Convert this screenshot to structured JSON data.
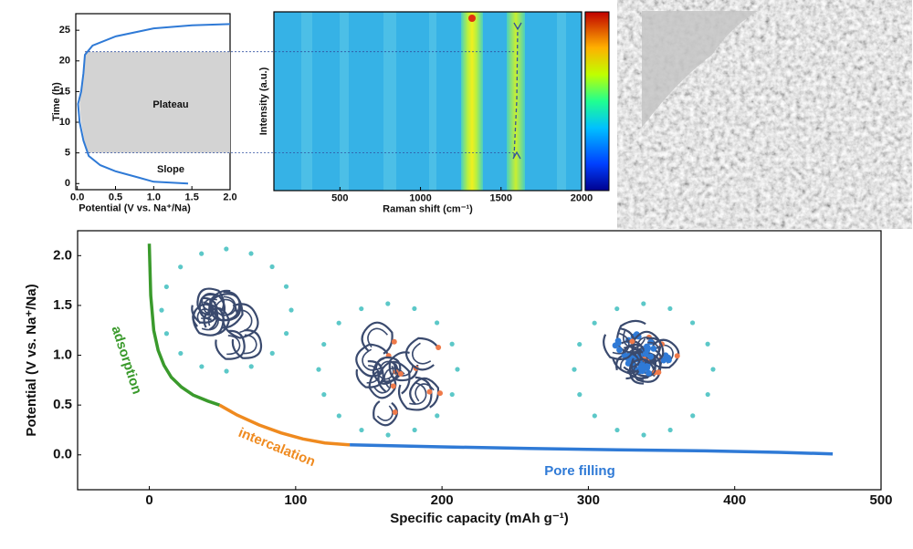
{
  "chart_data": [
    {
      "type": "line",
      "x_label": "Potential (V vs. Na⁺/Na)",
      "y_label": "Time (h)",
      "xlim": [
        -0.02,
        2.0
      ],
      "ylim": [
        -1,
        27.7
      ],
      "xticks": [
        {
          "value": 0,
          "label": "0.0"
        },
        {
          "value": 0.5,
          "label": "0.5"
        },
        {
          "value": 1.0,
          "label": "1.0"
        },
        {
          "value": 1.5,
          "label": "1.5"
        },
        {
          "value": 2.0,
          "label": "2.0"
        }
      ],
      "yticks": [
        0,
        5,
        10,
        15,
        20,
        25
      ],
      "annotations": [
        "Plateau",
        "Slope"
      ],
      "series": [
        {
          "color": "#2f7ad6",
          "x": [
            1.45,
            1.0,
            0.8,
            0.5,
            0.3,
            0.15,
            0.08,
            0.03,
            0.01,
            0.05,
            0.08,
            0.1,
            0.2,
            0.5,
            1.0,
            1.5,
            2.0
          ],
          "values": [
            0,
            0.3,
            1,
            2,
            3,
            4.5,
            7,
            10,
            13,
            15,
            18,
            21,
            22.5,
            24,
            25.3,
            25.8,
            26
          ]
        }
      ]
    },
    {
      "type": "heatmap",
      "x_label": "Raman shift (cm⁻¹)",
      "y_label": "Intensity (a.u.)",
      "xlim": [
        90,
        2000
      ],
      "xticks": [
        500,
        1000,
        1500,
        2000
      ]
    },
    {
      "type": "line",
      "x_label": "Specific capacity (mAh g⁻¹)",
      "y_label": "Potential (V vs. Na⁺/Na)",
      "xlim": [
        -49,
        500
      ],
      "ylim": [
        -0.35,
        2.25
      ],
      "xticks": [
        0,
        100,
        200,
        300,
        400,
        500
      ],
      "yticks": [
        {
          "value": 0,
          "label": "0.0"
        },
        {
          "value": 0.5,
          "label": "0.5"
        },
        {
          "value": 1.0,
          "label": "1.0"
        },
        {
          "value": 1.5,
          "label": "1.5"
        },
        {
          "value": 2.0,
          "label": "2.0"
        }
      ],
      "series": [
        {
          "name": "adsorption",
          "color": "#3a9a2c",
          "x": [
            0,
            1,
            3,
            6,
            10,
            15,
            22,
            30,
            40,
            48
          ],
          "values": [
            2.12,
            1.6,
            1.25,
            1.05,
            0.9,
            0.78,
            0.68,
            0.6,
            0.54,
            0.5
          ]
        },
        {
          "name": "intercalation",
          "color": "#ef8a1f",
          "x": [
            48,
            60,
            75,
            90,
            105,
            120,
            137
          ],
          "values": [
            0.5,
            0.4,
            0.3,
            0.22,
            0.16,
            0.12,
            0.1
          ]
        },
        {
          "name": "Pore filling",
          "color": "#2f7ad6",
          "x": [
            137,
            200,
            260,
            320,
            380,
            430,
            467
          ],
          "values": [
            0.1,
            0.08,
            0.065,
            0.05,
            0.04,
            0.025,
            0.01
          ]
        }
      ]
    }
  ]
}
